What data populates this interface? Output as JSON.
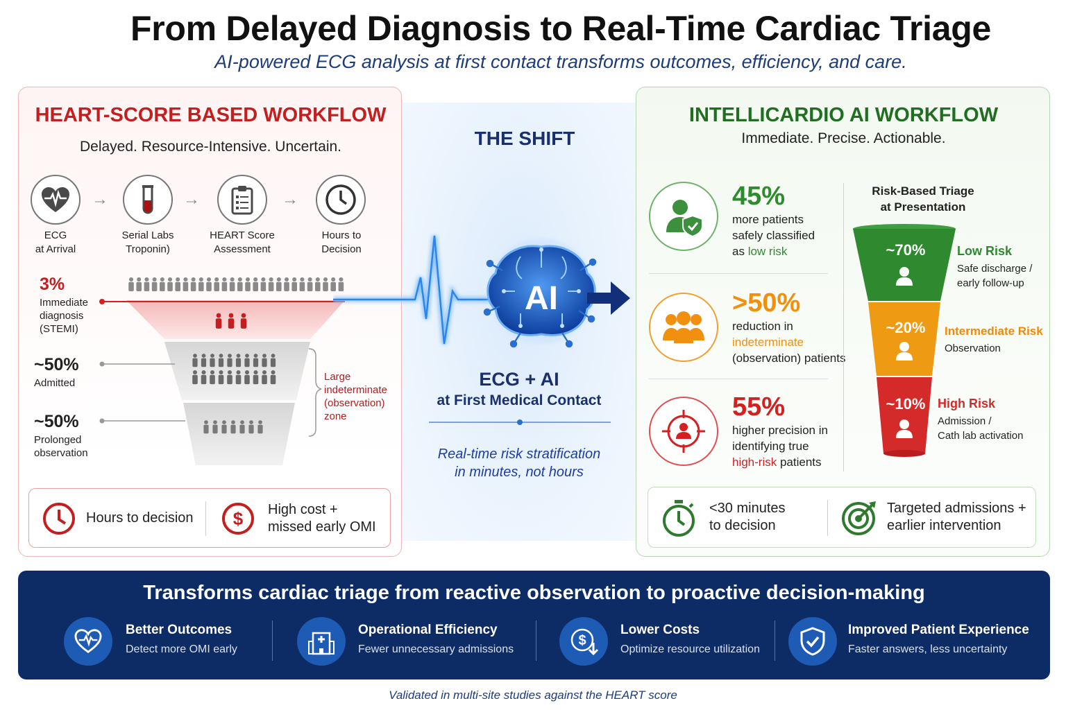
{
  "header": {
    "title": "From Delayed Diagnosis to Real-Time Cardiac Triage",
    "subtitle": "AI-powered ECG analysis at first contact transforms outcomes, efficiency, and care."
  },
  "left": {
    "title": "HEART-SCORE BASED WORKFLOW",
    "subtitle": "Delayed. Resource-Intensive. Uncertain.",
    "steps": [
      {
        "label1": "ECG",
        "label2": "at Arrival",
        "icon": "heart-ecg-icon"
      },
      {
        "label1": "Serial Labs",
        "label2": "Troponin)",
        "icon": "test-tube-icon"
      },
      {
        "label1": "HEART Score",
        "label2": "Assessment",
        "icon": "clipboard-icon"
      },
      {
        "label1": "Hours to",
        "label2": "Decision",
        "icon": "clock-icon"
      }
    ],
    "stats": [
      {
        "value": "3%",
        "l1": "Immediate",
        "l2": "diagnosis",
        "l3": "(STEMI)"
      },
      {
        "value": "~50%",
        "l1": "Admitted"
      },
      {
        "value": "~50%",
        "l1": "Prolonged",
        "l2": "observation"
      }
    ],
    "bracket": {
      "l1": "Large",
      "l2": "indeterminate",
      "l3": "(observation)",
      "l4": "zone"
    },
    "footer": {
      "item1": "Hours to decision",
      "item2_l1": "High cost +",
      "item2_l2": "missed early OMI"
    }
  },
  "center": {
    "shift": "THE SHIFT",
    "ai": "AI",
    "ecg_ai": "ECG + AI",
    "fmc": "at First Medical Contact",
    "rt1": "Real-time risk stratification",
    "rt2": "in minutes, not hours"
  },
  "right": {
    "title": "INTELLICARDIO AI WORKFLOW",
    "subtitle": "Immediate. Precise. Actionable.",
    "metrics": [
      {
        "value": "45%",
        "l1": "more patients",
        "l2": "safely classified",
        "l3a": "as ",
        "l3b": "low risk",
        "color": "#2e8b2e"
      },
      {
        "value": ">50%",
        "l1": "reduction in",
        "l2": "indeterminate",
        "l3a": "(observation) patients",
        "color": "#f0900e"
      },
      {
        "value": "55%",
        "l1": "higher precision in",
        "l2": "identifying true",
        "l3a": "high-risk",
        "l3b": " patients",
        "color": "#d42020"
      }
    ],
    "triage_title1": "Risk-Based Triage",
    "triage_title2": "at Presentation",
    "tiers": [
      {
        "pct": "~70%",
        "name": "Low Risk",
        "d1": "Safe discharge /",
        "d2": "early follow-up",
        "color": "#2f8a2f"
      },
      {
        "pct": "~20%",
        "name": "Intermediate Risk",
        "d1": "Observation",
        "d2": "",
        "color": "#ee9a12"
      },
      {
        "pct": "~10%",
        "name": "High Risk",
        "d1": "Admission /",
        "d2": "Cath lab activation",
        "color": "#d42a2a"
      }
    ],
    "footer": {
      "item1_l1": "<30 minutes",
      "item1_l2": "to decision",
      "item2_l1": "Targeted admissions +",
      "item2_l2": "earlier intervention"
    }
  },
  "banner": {
    "title": "Transforms cardiac triage from reactive observation to proactive decision-making",
    "items": [
      {
        "name": "Better Outcomes",
        "desc": "Detect more OMI early",
        "icon": "heart-pulse-icon"
      },
      {
        "name": "Operational Efficiency",
        "desc": "Fewer unnecessary admissions",
        "icon": "hospital-icon"
      },
      {
        "name": "Lower Costs",
        "desc": "Optimize resource utilization",
        "icon": "dollar-down-icon"
      },
      {
        "name": "Improved Patient Experience",
        "desc": "Faster answers, less uncertainty",
        "icon": "shield-check-icon"
      }
    ]
  },
  "footnote": "Validated in multi-site studies against the HEART score"
}
